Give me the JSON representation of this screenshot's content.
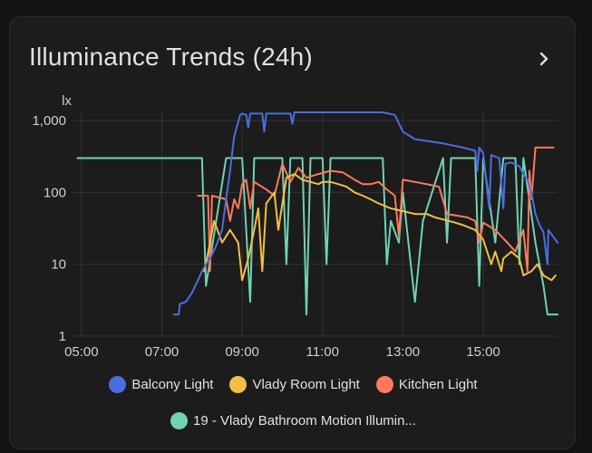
{
  "card": {
    "title": "Illuminance Trends (24h)"
  },
  "colors": {
    "balcony": "#4a6ee0",
    "vlady_room": "#f2be46",
    "kitchen": "#ff7a5c",
    "bathroom": "#6fd3b4",
    "grid": "#333333",
    "axis_text": "#cfcfcf"
  },
  "chart_data": {
    "type": "line",
    "ylabel": "lx",
    "yscale": "log",
    "ylim": [
      1,
      1300
    ],
    "y_ticks": [
      1,
      10,
      100,
      1000
    ],
    "y_tick_labels": [
      "1",
      "10",
      "100",
      "1,000"
    ],
    "xlim": [
      4.8,
      16.85
    ],
    "x_ticks": [
      5,
      7,
      9,
      11,
      13,
      15
    ],
    "x_tick_labels": [
      "05:00",
      "07:00",
      "09:00",
      "11:00",
      "13:00",
      "15:00"
    ],
    "grid": true,
    "legend_position": "bottom",
    "series": [
      {
        "name": "Balcony Light",
        "color_key": "balcony",
        "points": [
          [
            7.3,
            2
          ],
          [
            7.42,
            2
          ],
          [
            7.45,
            2.8
          ],
          [
            7.6,
            3
          ],
          [
            7.75,
            4
          ],
          [
            7.9,
            6
          ],
          [
            8.0,
            8
          ],
          [
            8.1,
            10
          ],
          [
            8.2,
            12
          ],
          [
            8.35,
            18
          ],
          [
            8.5,
            30
          ],
          [
            8.6,
            80
          ],
          [
            8.7,
            200
          ],
          [
            8.8,
            600
          ],
          [
            8.95,
            1200
          ],
          [
            9.0,
            1250
          ],
          [
            9.1,
            1200
          ],
          [
            9.15,
            800
          ],
          [
            9.2,
            1250
          ],
          [
            9.5,
            1250
          ],
          [
            9.55,
            700
          ],
          [
            9.6,
            1250
          ],
          [
            10.2,
            1250
          ],
          [
            10.25,
            900
          ],
          [
            10.3,
            1300
          ],
          [
            12.5,
            1300
          ],
          [
            12.8,
            1200
          ],
          [
            13.0,
            700
          ],
          [
            13.3,
            550
          ],
          [
            14.0,
            480
          ],
          [
            14.5,
            420
          ],
          [
            14.8,
            380
          ],
          [
            14.85,
            200
          ],
          [
            14.9,
            420
          ],
          [
            15.0,
            350
          ],
          [
            15.15,
            60
          ],
          [
            15.2,
            330
          ],
          [
            15.4,
            300
          ],
          [
            15.5,
            60
          ],
          [
            15.55,
            250
          ],
          [
            15.7,
            260
          ],
          [
            15.9,
            230
          ],
          [
            16.0,
            180
          ],
          [
            16.1,
            150
          ],
          [
            16.2,
            100
          ],
          [
            16.3,
            50
          ],
          [
            16.4,
            35
          ],
          [
            16.5,
            28
          ],
          [
            16.6,
            10
          ],
          [
            16.62,
            30
          ],
          [
            16.85,
            20
          ]
        ]
      },
      {
        "name": "Vlady Room Light",
        "color_key": "vlady_room",
        "points": [
          [
            8.05,
            8
          ],
          [
            8.1,
            10
          ],
          [
            8.3,
            40
          ],
          [
            8.5,
            20
          ],
          [
            8.7,
            30
          ],
          [
            8.9,
            20
          ],
          [
            9.0,
            6
          ],
          [
            9.15,
            12
          ],
          [
            9.3,
            30
          ],
          [
            9.4,
            60
          ],
          [
            9.5,
            8
          ],
          [
            9.6,
            70
          ],
          [
            9.8,
            100
          ],
          [
            9.9,
            30
          ],
          [
            10.1,
            160
          ],
          [
            10.3,
            180
          ],
          [
            10.5,
            150
          ],
          [
            10.7,
            140
          ],
          [
            10.9,
            130
          ],
          [
            11.0,
            140
          ],
          [
            11.2,
            140
          ],
          [
            11.4,
            130
          ],
          [
            11.6,
            120
          ],
          [
            11.8,
            100
          ],
          [
            12.0,
            90
          ],
          [
            12.2,
            80
          ],
          [
            12.4,
            70
          ],
          [
            12.7,
            60
          ],
          [
            13.0,
            55
          ],
          [
            13.3,
            50
          ],
          [
            13.6,
            50
          ],
          [
            13.8,
            45
          ],
          [
            14.0,
            42
          ],
          [
            14.3,
            38
          ],
          [
            14.5,
            35
          ],
          [
            14.8,
            30
          ],
          [
            15.0,
            22
          ],
          [
            15.2,
            10
          ],
          [
            15.3,
            15
          ],
          [
            15.45,
            8
          ],
          [
            15.5,
            12
          ],
          [
            15.7,
            15
          ],
          [
            15.9,
            12
          ],
          [
            16.0,
            7
          ],
          [
            16.2,
            8
          ],
          [
            16.35,
            10
          ],
          [
            16.5,
            7
          ],
          [
            16.7,
            6
          ],
          [
            16.8,
            7
          ]
        ]
      },
      {
        "name": "Kitchen Light",
        "color_key": "kitchen",
        "points": [
          [
            7.9,
            90
          ],
          [
            8.15,
            90
          ],
          [
            8.2,
            8
          ],
          [
            8.25,
            90
          ],
          [
            8.6,
            80
          ],
          [
            8.7,
            40
          ],
          [
            8.8,
            80
          ],
          [
            8.9,
            60
          ],
          [
            9.0,
            130
          ],
          [
            9.1,
            150
          ],
          [
            9.2,
            60
          ],
          [
            9.3,
            140
          ],
          [
            9.6,
            110
          ],
          [
            9.8,
            90
          ],
          [
            10.0,
            250
          ],
          [
            10.2,
            140
          ],
          [
            10.4,
            220
          ],
          [
            10.6,
            160
          ],
          [
            10.9,
            180
          ],
          [
            11.2,
            200
          ],
          [
            11.5,
            190
          ],
          [
            11.8,
            150
          ],
          [
            12.0,
            130
          ],
          [
            12.2,
            130
          ],
          [
            12.4,
            140
          ],
          [
            12.6,
            110
          ],
          [
            12.8,
            90
          ],
          [
            12.9,
            25
          ],
          [
            13.0,
            150
          ],
          [
            13.3,
            140
          ],
          [
            13.6,
            130
          ],
          [
            13.9,
            120
          ],
          [
            14.1,
            50
          ],
          [
            14.3,
            48
          ],
          [
            14.6,
            45
          ],
          [
            14.8,
            40
          ],
          [
            14.9,
            20
          ],
          [
            15.0,
            38
          ],
          [
            15.3,
            30
          ],
          [
            15.6,
            20
          ],
          [
            15.8,
            15
          ],
          [
            16.0,
            30
          ],
          [
            16.1,
            8
          ],
          [
            16.15,
            200
          ],
          [
            16.2,
            80
          ],
          [
            16.3,
            420
          ],
          [
            16.75,
            420
          ]
        ]
      },
      {
        "name": "19 - Vlady Bathroom Motion Illumin...",
        "color_key": "bathroom",
        "points": [
          [
            4.9,
            300
          ],
          [
            5.1,
            300
          ],
          [
            5.3,
            300
          ],
          [
            5.5,
            300
          ],
          [
            8.0,
            300
          ],
          [
            8.1,
            5
          ],
          [
            8.6,
            300
          ],
          [
            9.0,
            300
          ],
          [
            9.2,
            3
          ],
          [
            9.3,
            300
          ],
          [
            10.0,
            300
          ],
          [
            10.1,
            10
          ],
          [
            10.2,
            300
          ],
          [
            10.5,
            300
          ],
          [
            10.6,
            2
          ],
          [
            10.7,
            300
          ],
          [
            11.0,
            300
          ],
          [
            11.1,
            10
          ],
          [
            11.2,
            300
          ],
          [
            12.0,
            300
          ],
          [
            12.5,
            300
          ],
          [
            12.6,
            10
          ],
          [
            12.7,
            40
          ],
          [
            12.9,
            20
          ],
          [
            13.0,
            100
          ],
          [
            13.3,
            3
          ],
          [
            13.5,
            40
          ],
          [
            14.0,
            300
          ],
          [
            14.1,
            20
          ],
          [
            14.2,
            300
          ],
          [
            14.8,
            300
          ],
          [
            14.9,
            5
          ],
          [
            15.0,
            300
          ],
          [
            15.3,
            20
          ],
          [
            15.5,
            300
          ],
          [
            15.8,
            300
          ],
          [
            15.9,
            10
          ],
          [
            16.0,
            300
          ],
          [
            16.3,
            20
          ],
          [
            16.5,
            5
          ],
          [
            16.6,
            2
          ],
          [
            16.85,
            2
          ]
        ]
      }
    ]
  },
  "legend": [
    {
      "label": "Balcony Light",
      "color_key": "balcony"
    },
    {
      "label": "Vlady Room Light",
      "color_key": "vlady_room"
    },
    {
      "label": "Kitchen Light",
      "color_key": "kitchen"
    },
    {
      "label": "19 - Vlady Bathroom Motion Illumin...",
      "color_key": "bathroom"
    }
  ]
}
